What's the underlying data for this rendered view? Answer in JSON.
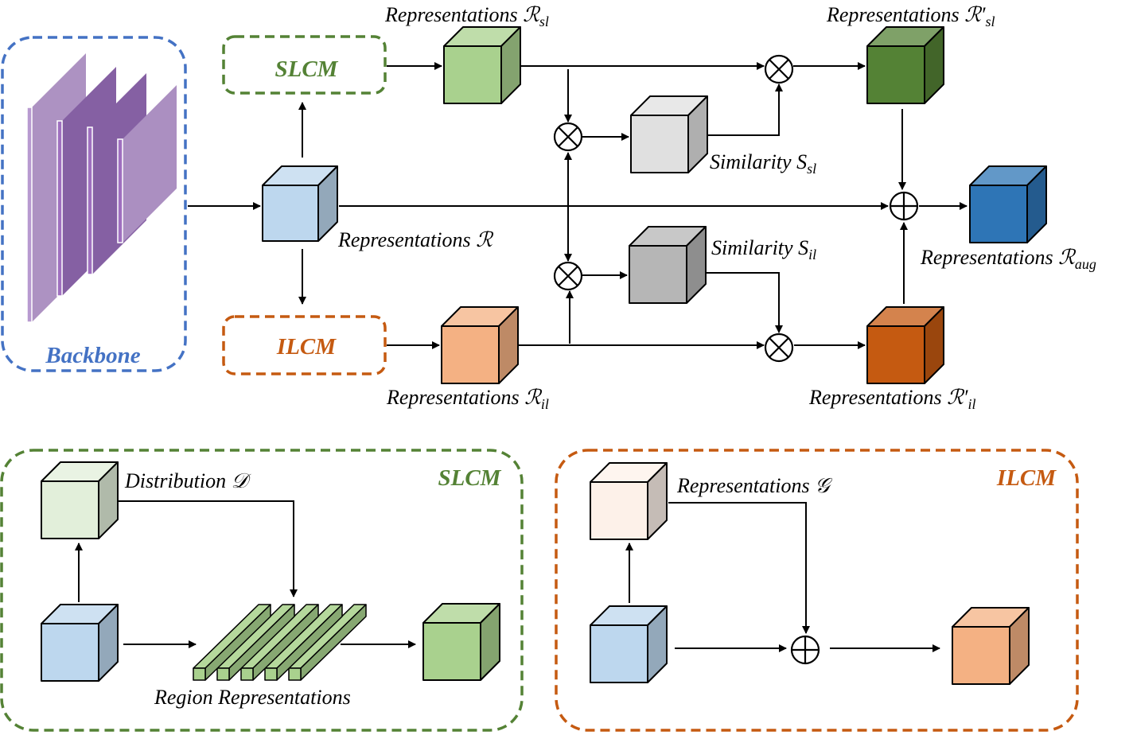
{
  "modules": {
    "backbone": {
      "label": "Backbone",
      "color": "#4472c4"
    },
    "slcm": {
      "label": "SLCM",
      "color": "#548235"
    },
    "ilcm": {
      "label": "ILCM",
      "color": "#c55a11"
    }
  },
  "labels": {
    "r": {
      "text": "Representations ",
      "sym": "ℛ",
      "sub": ""
    },
    "rsl": {
      "text": "Representations ",
      "sym": "ℛ",
      "sub": "sl"
    },
    "rsl_prime": {
      "text": "Representations ",
      "sym": "ℛ′",
      "sub": "sl"
    },
    "ril": {
      "text": "Representations ",
      "sym": "ℛ",
      "sub": "il"
    },
    "ril_prime": {
      "text": "Representations ",
      "sym": "ℛ′",
      "sub": "il"
    },
    "raug": {
      "text": "Representations ",
      "sym": "ℛ",
      "sub": "aug"
    },
    "ssl": {
      "text": "Similarity ",
      "sym": "S",
      "sub": "sl"
    },
    "sil": {
      "text": "Similarity ",
      "sym": "S",
      "sub": "il"
    },
    "dist": {
      "text": "Distribution ",
      "sym": "𝒟",
      "sub": ""
    },
    "region": {
      "text": "Region Representations",
      "sym": "",
      "sub": ""
    },
    "g": {
      "text": "Representations ",
      "sym": "𝒢",
      "sub": ""
    }
  },
  "operators": {
    "multiply": "⊗",
    "add": "⊕"
  },
  "colors": {
    "blue_cube": "#bdd7ee",
    "green_cube": "#a9d18e",
    "dark_green_cube": "#548235",
    "light_gray_cube": "#e0e0e0",
    "gray_cube": "#b6b6b6",
    "dark_blue_cube": "#2e75b6",
    "orange_cube": "#f4b183",
    "dark_orange_cube": "#c55a11",
    "light_green_cube": "#e2efda",
    "light_orange_cube": "#fdf1e9",
    "backbone_purple": "#8560a3"
  }
}
